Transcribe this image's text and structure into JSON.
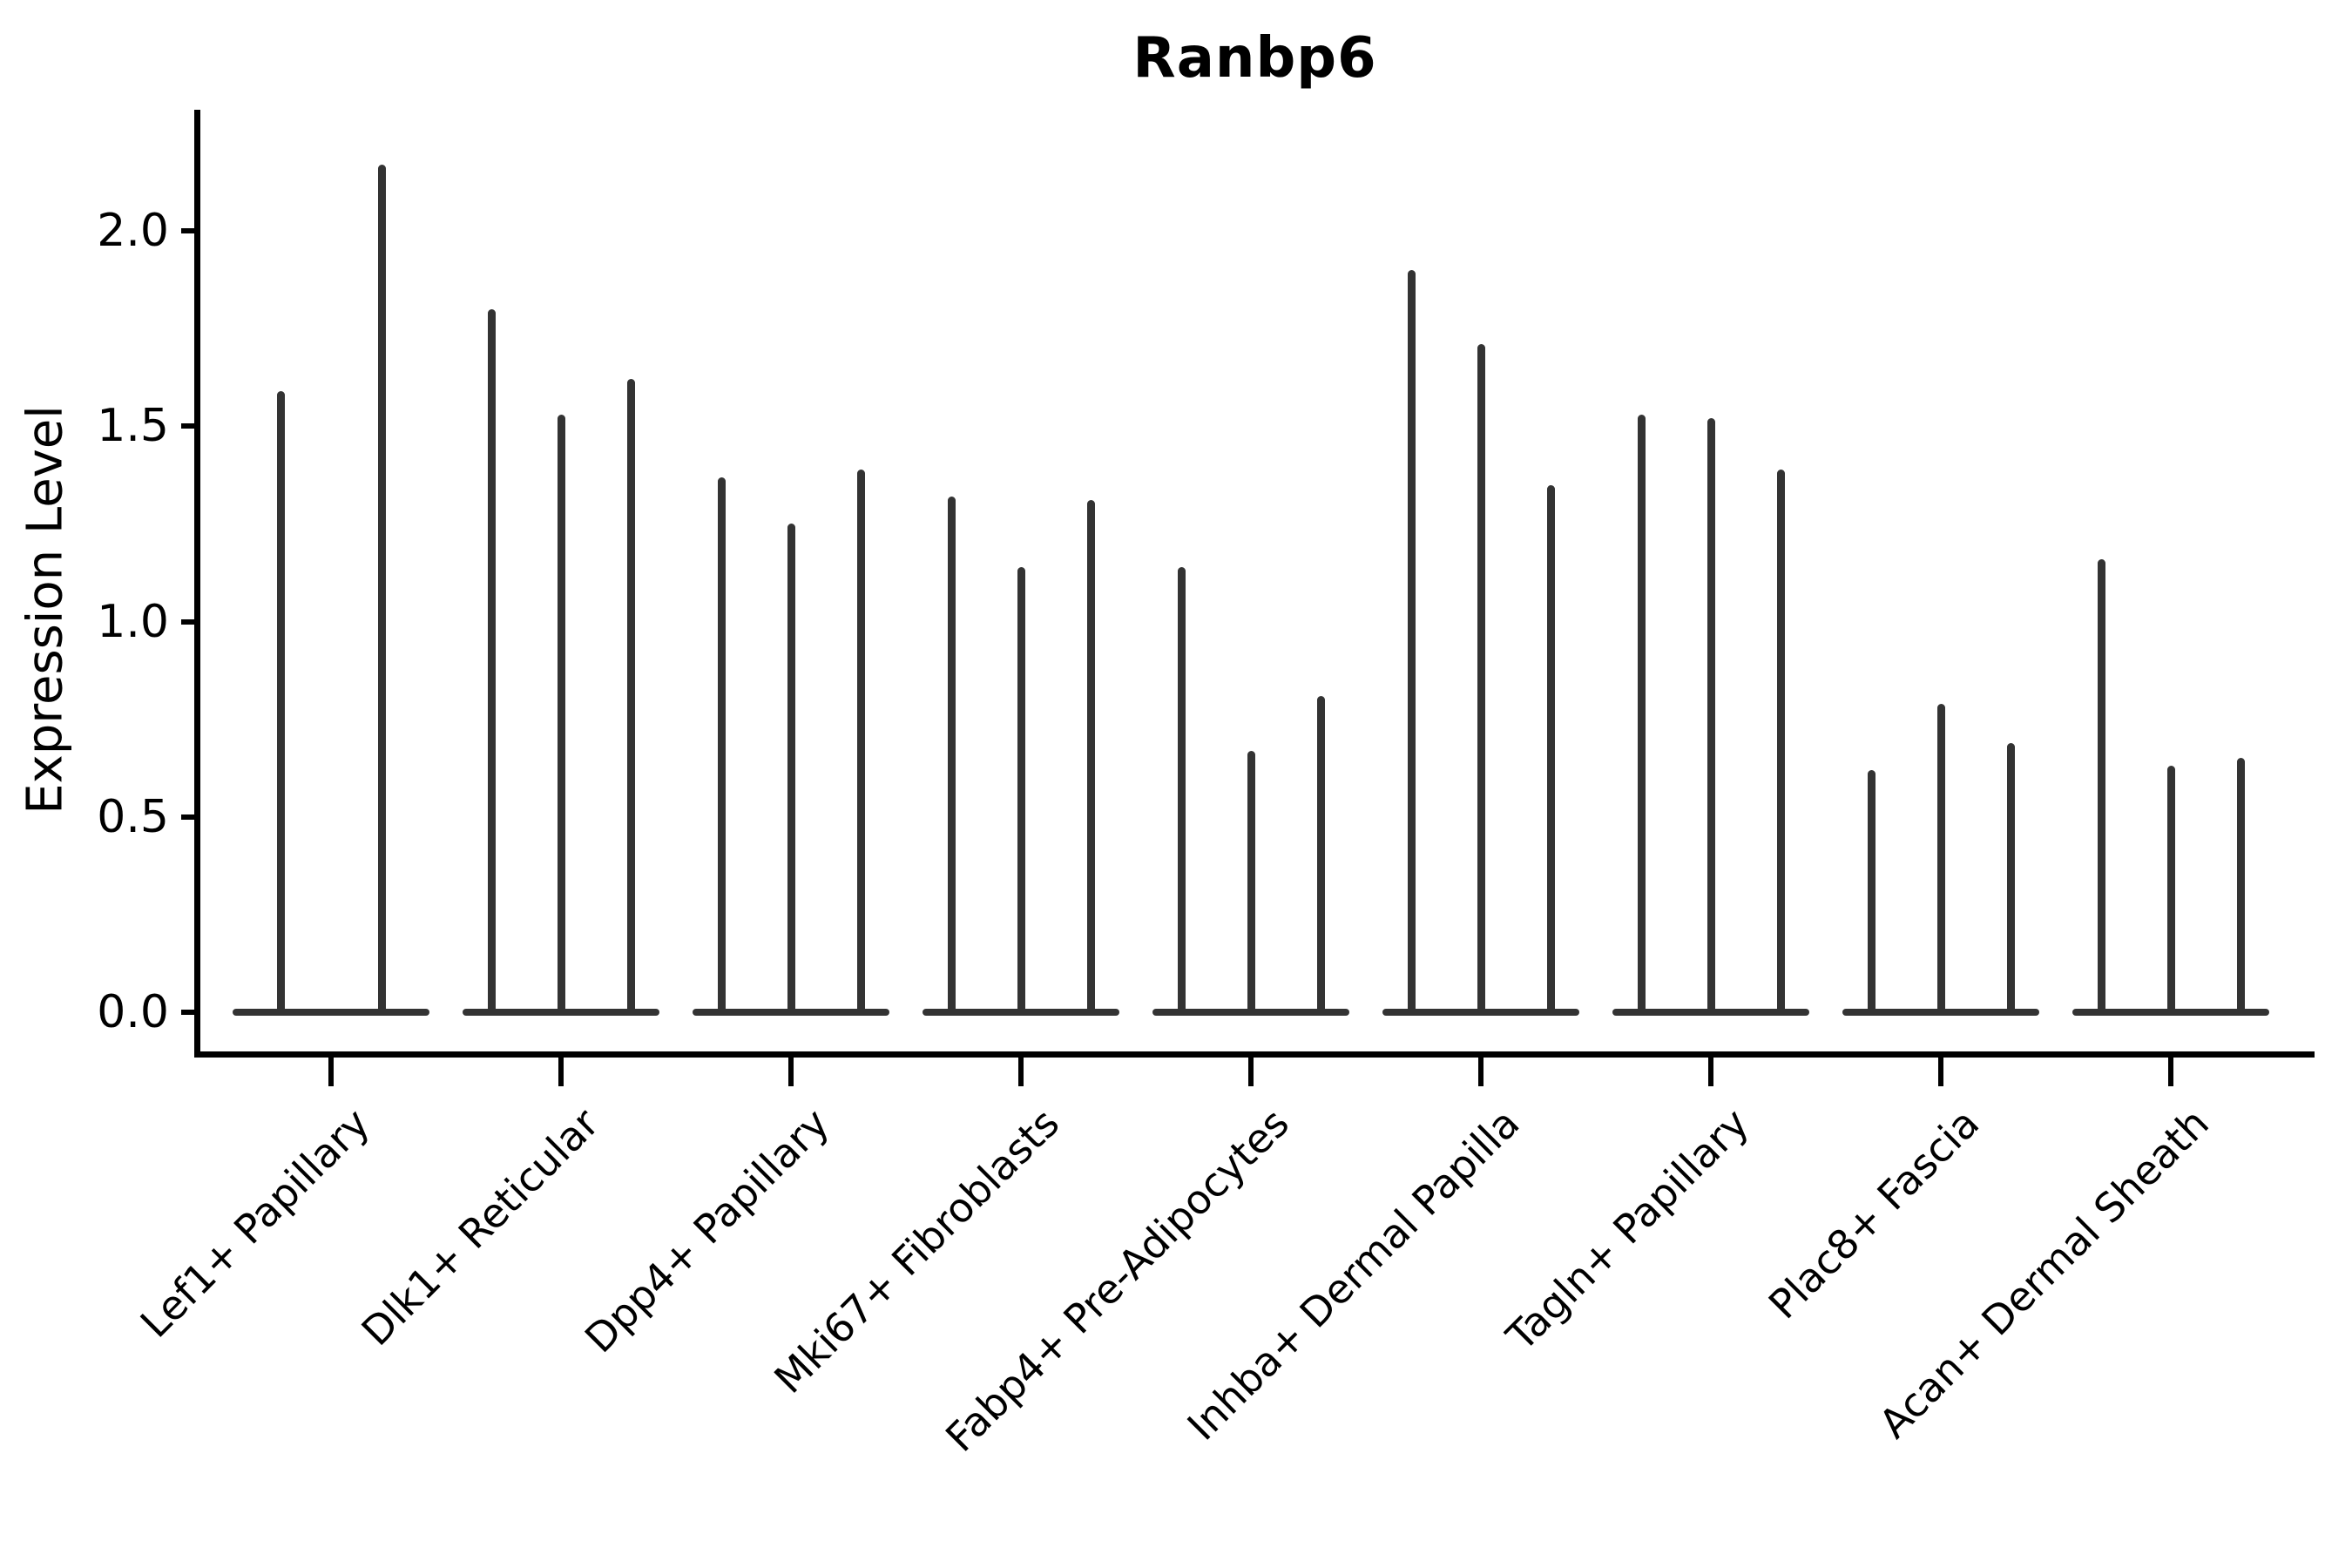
{
  "figure": {
    "title": "Ranbp6",
    "background_color": "#ffffff",
    "violin_color": "#333333",
    "axis_color": "#000000"
  },
  "chart_data": {
    "type": "violin",
    "title": "Ranbp6",
    "xlabel": "",
    "ylabel": "Expression Level",
    "yticks": [
      0.0,
      0.5,
      1.0,
      1.5,
      2.0
    ],
    "ytick_labels": [
      "0.0",
      "0.5",
      "1.0",
      "1.5",
      "2.0"
    ],
    "ylim": [
      -0.1,
      2.31
    ],
    "grid": false,
    "legend": "none",
    "categories": [
      "Lef1+ Papillary",
      "Dlk1+ Reticular",
      "Dpp4+ Papillary",
      "Mki67+ Fibroblasts",
      "Fabp4+ Pre-Adipocytes",
      "Inhba+ Dermal Papilla",
      "Tagln+ Papillary",
      "Plac8+ Fascia",
      "Acan+ Dermal Sheath"
    ],
    "groups": [
      {
        "label": "Lef1+ Papillary",
        "violin_maxima": [
          1.59,
          2.17
        ]
      },
      {
        "label": "Dlk1+ Reticular",
        "violin_maxima": [
          1.8,
          1.53,
          1.62
        ]
      },
      {
        "label": "Dpp4+ Papillary",
        "violin_maxima": [
          1.37,
          1.25,
          1.39
        ]
      },
      {
        "label": "Mki67+ Fibroblasts",
        "violin_maxima": [
          1.32,
          1.14,
          1.31
        ]
      },
      {
        "label": "Fabp4+ Pre-Adipocytes",
        "violin_maxima": [
          1.14,
          0.67,
          0.81
        ]
      },
      {
        "label": "Inhba+ Dermal Papilla",
        "violin_maxima": [
          1.9,
          1.71,
          1.35
        ]
      },
      {
        "label": "Tagln+ Papillary",
        "violin_maxima": [
          1.53,
          1.52,
          1.39
        ]
      },
      {
        "label": "Plac8+ Fascia",
        "violin_maxima": [
          0.62,
          0.79,
          0.69
        ]
      },
      {
        "label": "Acan+ Dermal Sheath",
        "violin_maxima": [
          1.16,
          0.63,
          0.65
        ]
      }
    ],
    "shape_note": "Each violin is concentrated at 0 (flat wide base) with a thin spike rising to its maximum expression value"
  }
}
